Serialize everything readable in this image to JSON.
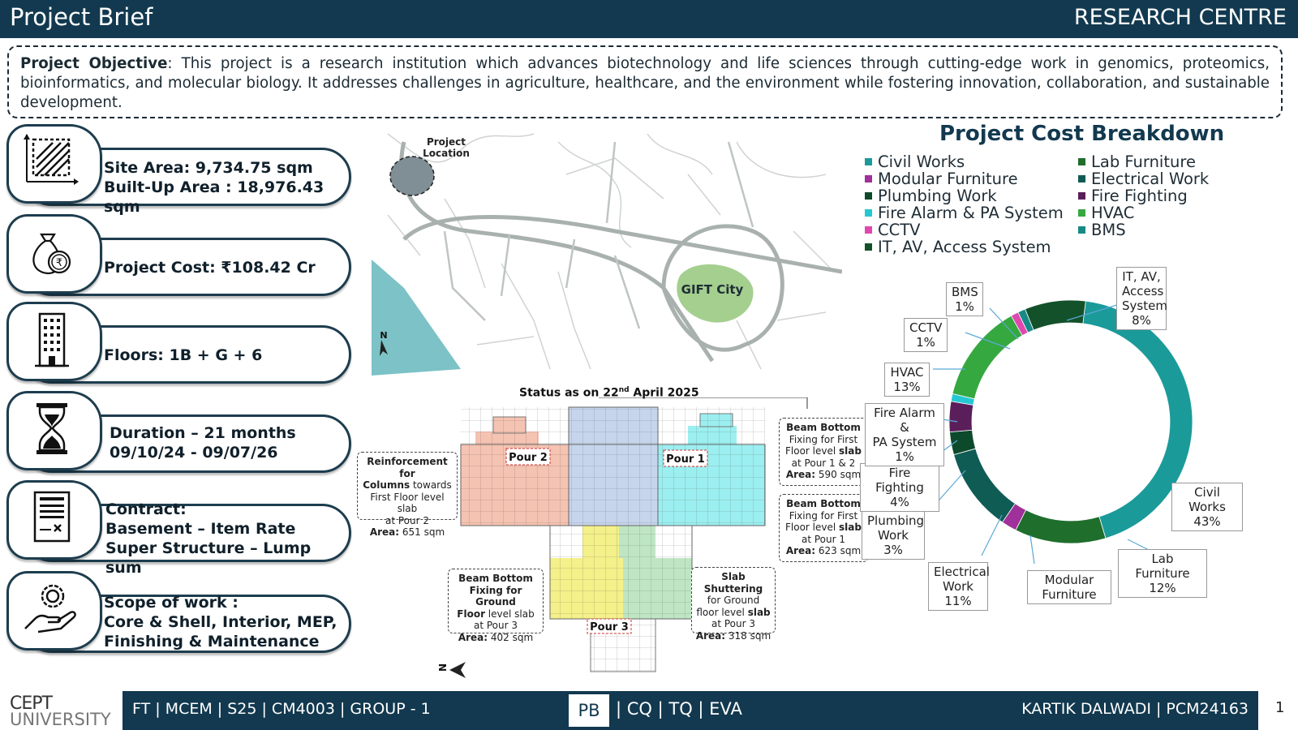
{
  "header": {
    "title": "Project Brief",
    "section": "RESEARCH CENTRE"
  },
  "objective": {
    "label": "Project Objective",
    "text": ": This project is a research institution which advances biotechnology and life sciences through cutting-edge work in genomics, proteomics, bioinformatics, and molecular biology. It addresses challenges in agriculture, healthcare, and the environment while fostering innovation, collaboration, and sustainable development."
  },
  "cards": {
    "site": {
      "line1": "Site Area: 9,734.75 sqm",
      "line2": "Built-Up Area : 18,976.43 sqm",
      "icon": "site-area-icon"
    },
    "cost": {
      "line1": "Project Cost: ₹108.42 Cr",
      "icon": "money-bag-icon"
    },
    "floors": {
      "line1": "Floors: 1B + G + 6",
      "icon": "building-icon"
    },
    "duration": {
      "line1": "Duration – 21 months",
      "line2": "09/10/24 - 09/07/26",
      "icon": "hourglass-icon"
    },
    "contract": {
      "line1": "Contract:",
      "line2": "Basement – Item Rate",
      "line3": "Super Structure – Lump sum",
      "icon": "contract-icon"
    },
    "scope": {
      "line1": "Scope of work :",
      "line2": "Core & Shell, Interior, MEP,",
      "line3": "Finishing & Maintenance",
      "icon": "gear-hand-icon"
    }
  },
  "map": {
    "location_label_1": "Project",
    "location_label_2": "Location",
    "city": "GIFT City",
    "north": "N"
  },
  "plan": {
    "status_title": "Status as on 22",
    "status_sup": "nd",
    "status_title_2": " April 2025",
    "pour1": "Pour 1",
    "pour2": "Pour 2",
    "pour3": "Pour 3",
    "north": "N",
    "callouts": {
      "c1": {
        "b1": "Reinforcement for",
        "b2": "Columns",
        "t2": " towards",
        "t3": "First Floor level slab",
        "t4": "at Pour 2",
        "area_label": "Area:",
        "area": " 651 sqm"
      },
      "c2": {
        "b1": "Beam Bottom",
        "t1": "Fixing for First",
        "t2": "Floor level ",
        "b2": "slab",
        "t3": "at Pour 1 & 2",
        "area_label": "Area:",
        "area": " 590 sqm"
      },
      "c3": {
        "b1": "Beam Bottom",
        "t1": "Fixing for First",
        "t2": "Floor level ",
        "b2": "slab",
        "t3": "at Pour 1",
        "area_label": "Area:",
        "area": " 623 sqm"
      },
      "c4": {
        "b1": "Beam Bottom",
        "b2": "Fixing for Ground",
        "b3": "Floor",
        "t1": " level slab",
        "t2": "at Pour 3",
        "area_label": "Area:",
        "area": " 402 sqm"
      },
      "c5": {
        "b1": "Slab Shuttering",
        "t1": "for Ground",
        "t2": "floor level ",
        "b2": "slab",
        "t3": "at Pour 3",
        "area_label": "Area:",
        "area": " 318 sqm"
      }
    }
  },
  "chart_data": {
    "type": "pie",
    "title": "Project Cost Breakdown",
    "legend_position": "top",
    "categories": [
      "Civil Works",
      "Lab Furniture",
      "Modular Furniture",
      "Electrical Work",
      "Plumbing Work",
      "Fire Fighting",
      "Fire Alarm & PA System",
      "HVAC",
      "CCTV",
      "BMS",
      "IT, AV, Access System"
    ],
    "values": [
      43,
      12,
      2,
      11,
      3,
      4,
      1,
      13,
      1,
      1,
      8
    ],
    "colors": [
      "#1b9a9a",
      "#1f6e2c",
      "#a0309a",
      "#0f5c55",
      "#0d4a2c",
      "#5a1f5a",
      "#25c8d2",
      "#35a840",
      "#e048b0",
      "#188a86",
      "#13512a"
    ],
    "data_labels": {
      "civil": {
        "l1": "Civil Works",
        "l2": "43%"
      },
      "lab": {
        "l1": "Lab Furniture",
        "l2": "12%"
      },
      "modular": {
        "l1": "Modular",
        "l2": "Furniture"
      },
      "electrical": {
        "l1": "Electrical",
        "l2": "Work",
        "l3": "11%"
      },
      "plumbing": {
        "l1": "Plumbing",
        "l2": "Work",
        "l3": "3%"
      },
      "fire_fighting": {
        "l1": "Fire Fighting",
        "l2": "4%"
      },
      "fire_alarm": {
        "l1": "Fire Alarm &",
        "l2": "PA System",
        "l3": "1%"
      },
      "hvac": {
        "l1": "HVAC",
        "l2": "13%"
      },
      "cctv": {
        "l1": "CCTV",
        "l2": "1%"
      },
      "bms": {
        "l1": "BMS",
        "l2": "1%"
      },
      "it": {
        "l1": "IT, AV,",
        "l2": "Access",
        "l3": "System",
        "l4": "8%"
      }
    },
    "legend": [
      {
        "label": "Civil Works",
        "color": "#1b9a9a"
      },
      {
        "label": "Lab Furniture",
        "color": "#1f6e2c"
      },
      {
        "label": "Modular Furniture",
        "color": "#a0309a"
      },
      {
        "label": "Electrical Work",
        "color": "#0f5c55"
      },
      {
        "label": "Plumbing Work",
        "color": "#0d4a2c"
      },
      {
        "label": "Fire Fighting",
        "color": "#5a1f5a"
      },
      {
        "label": "Fire Alarm & PA System",
        "color": "#25c8d2"
      },
      {
        "label": "HVAC",
        "color": "#35a840"
      },
      {
        "label": "CCTV",
        "color": "#e048b0"
      },
      {
        "label": "BMS",
        "color": "#188a86"
      },
      {
        "label": "IT, AV, Access System",
        "color": "#13512a"
      }
    ]
  },
  "footer": {
    "logo_top": "CEPT",
    "logo_bottom": "UNIVERSITY",
    "left": "FT | MCEM | S25 | CM4003 | GROUP - 1",
    "active_tab": "PB",
    "tabs_rest": "| CQ | TQ | EVA",
    "right": "KARTIK DALWADI | PCM24163",
    "page": "1"
  },
  "colors": {
    "primary": "#12394f",
    "card_border": "#1d3d4e"
  }
}
